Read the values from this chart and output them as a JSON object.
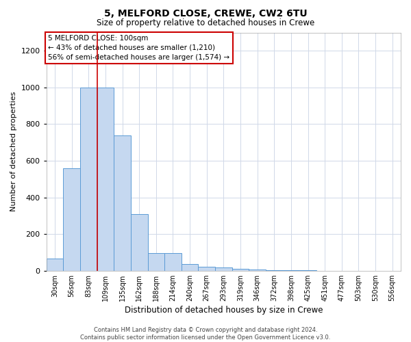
{
  "title1": "5, MELFORD CLOSE, CREWE, CW2 6TU",
  "title2": "Size of property relative to detached houses in Crewe",
  "xlabel": "Distribution of detached houses by size in Crewe",
  "ylabel": "Number of detached properties",
  "categories": [
    "30sqm",
    "56sqm",
    "83sqm",
    "109sqm",
    "135sqm",
    "162sqm",
    "188sqm",
    "214sqm",
    "240sqm",
    "267sqm",
    "293sqm",
    "319sqm",
    "346sqm",
    "372sqm",
    "398sqm",
    "425sqm",
    "451sqm",
    "477sqm",
    "503sqm",
    "530sqm",
    "556sqm"
  ],
  "values": [
    65,
    560,
    1000,
    1000,
    740,
    310,
    95,
    95,
    35,
    22,
    18,
    10,
    8,
    4,
    3,
    2,
    1,
    1,
    1,
    1,
    1
  ],
  "bar_color": "#c5d8f0",
  "bar_edge_color": "#5b9bd5",
  "ylim": [
    0,
    1300
  ],
  "yticks": [
    0,
    200,
    400,
    600,
    800,
    1000,
    1200
  ],
  "red_line_x": 2.5,
  "annotation_text": "5 MELFORD CLOSE: 100sqm\n← 43% of detached houses are smaller (1,210)\n56% of semi-detached houses are larger (1,574) →",
  "annotation_box_color": "#ffffff",
  "annotation_border_color": "#cc0000",
  "footer1": "Contains HM Land Registry data © Crown copyright and database right 2024.",
  "footer2": "Contains public sector information licensed under the Open Government Licence v3.0.",
  "background_color": "#ffffff",
  "grid_color": "#d0d8e8"
}
